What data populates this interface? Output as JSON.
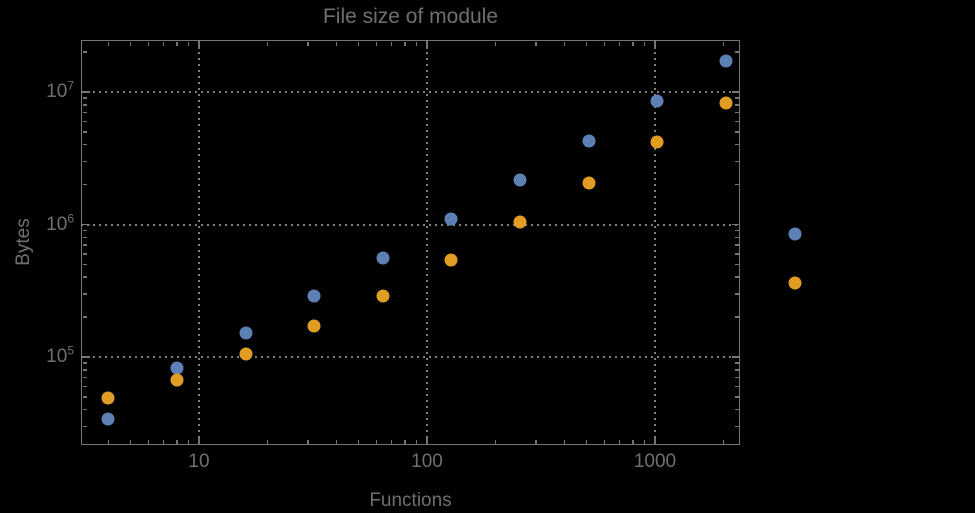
{
  "colors": {
    "background": "#000000",
    "frame": "#757575",
    "text": "#6f6f6f",
    "gridline": "#7f7f7f",
    "series1": "#5e81b5",
    "series2": "#e19c24"
  },
  "chart_data": {
    "type": "scatter",
    "title": "File size of module",
    "xlabel": "Functions",
    "ylabel": "Bytes",
    "axes": {
      "xscale": "log",
      "yscale": "log",
      "xlim_log": [
        0.4825,
        3.3728
      ],
      "ylim_log": [
        4.336,
        7.3925
      ],
      "grid": "dotted",
      "frame": true,
      "plot_range_clipping": false,
      "x_ticks": [
        {
          "value": 10,
          "label": "10"
        },
        {
          "value": 100,
          "label": "100"
        },
        {
          "value": 1000,
          "label": "1000"
        }
      ],
      "y_ticks": [
        {
          "value": 100000,
          "mantissa": "10",
          "exponent": "5"
        },
        {
          "value": 1000000,
          "mantissa": "10",
          "exponent": "6"
        },
        {
          "value": 10000000,
          "mantissa": "10",
          "exponent": "7"
        }
      ]
    },
    "series": [
      {
        "name": "series-1-blue",
        "color": "#5e81b5",
        "points": [
          [
            4,
            34000
          ],
          [
            8,
            83000
          ],
          [
            16,
            152000
          ],
          [
            32,
            289000
          ],
          [
            64,
            559000
          ],
          [
            128,
            1100000
          ],
          [
            256,
            2170000
          ],
          [
            512,
            4270000
          ],
          [
            1024,
            8550000
          ],
          [
            2048,
            17100000
          ],
          [
            4096,
            848000
          ]
        ]
      },
      {
        "name": "series-2-orange",
        "color": "#e19c24",
        "points": [
          [
            4,
            49000
          ],
          [
            8,
            67000
          ],
          [
            16,
            105000
          ],
          [
            32,
            171000
          ],
          [
            64,
            291000
          ],
          [
            128,
            540000
          ],
          [
            256,
            1050000
          ],
          [
            512,
            2060000
          ],
          [
            1024,
            4190000
          ],
          [
            2048,
            8260000
          ],
          [
            4096,
            365000
          ]
        ]
      }
    ]
  }
}
